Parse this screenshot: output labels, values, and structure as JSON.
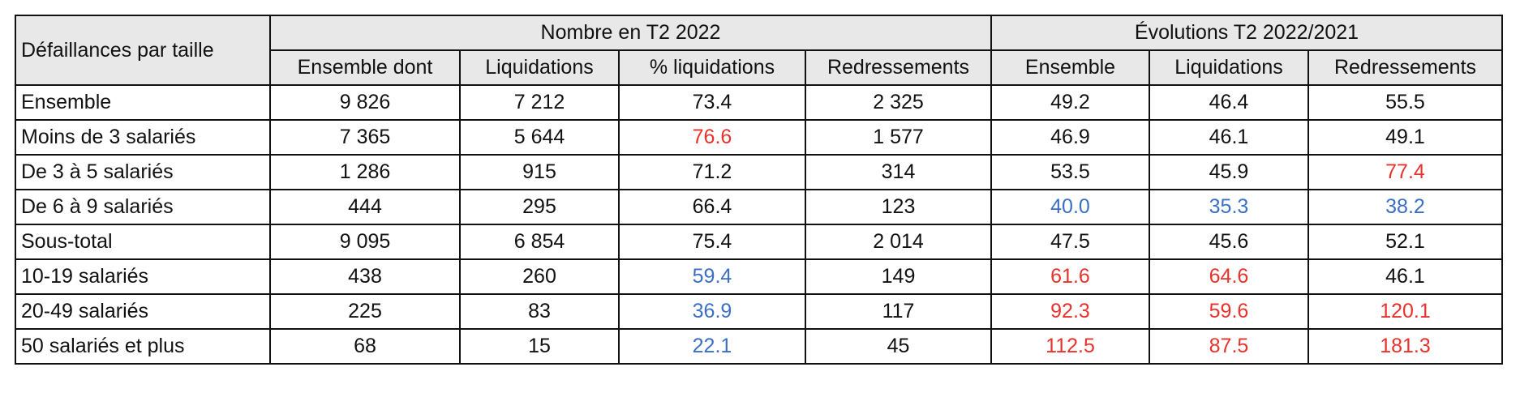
{
  "table": {
    "corner": "Défaillances par taille",
    "groups": [
      "Nombre en T2 2022",
      "Évolutions T2 2022/2021"
    ],
    "columns": [
      "Ensemble dont",
      "Liquidations",
      "% liquidations",
      "Redressements",
      "Ensemble",
      "Liquidations",
      "Redressements"
    ],
    "rows": [
      {
        "label": "Ensemble",
        "cells": [
          "9 826",
          "7 212",
          "73.4",
          "2 325",
          "49.2",
          "46.4",
          "55.5"
        ]
      },
      {
        "label": "Moins de 3 salariés",
        "cells": [
          "7 365",
          "5 644",
          {
            "text": "76.6",
            "color": "#e8322b"
          },
          "1 577",
          "46.9",
          "46.1",
          "49.1"
        ]
      },
      {
        "label": "De 3 à 5 salariés",
        "cells": [
          "1 286",
          "915",
          "71.2",
          "314",
          "53.5",
          "45.9",
          {
            "text": "77.4",
            "color": "#e8322b"
          }
        ]
      },
      {
        "label": "De 6 à 9 salariés",
        "cells": [
          "444",
          "295",
          "66.4",
          "123",
          {
            "text": "40.0",
            "color": "#3a6fc4"
          },
          {
            "text": "35.3",
            "color": "#3a6fc4"
          },
          {
            "text": "38.2",
            "color": "#3a6fc4"
          }
        ]
      },
      {
        "label": "Sous-total",
        "cells": [
          "9 095",
          "6 854",
          "75.4",
          "2 014",
          "47.5",
          "45.6",
          "52.1"
        ]
      },
      {
        "label": "10-19 salariés",
        "cells": [
          "438",
          "260",
          {
            "text": "59.4",
            "color": "#3a6fc4"
          },
          "149",
          {
            "text": "61.6",
            "color": "#e8322b"
          },
          {
            "text": "64.6",
            "color": "#e8322b"
          },
          "46.1"
        ]
      },
      {
        "label": "20-49 salariés",
        "cells": [
          "225",
          "83",
          {
            "text": "36.9",
            "color": "#3a6fc4"
          },
          "117",
          {
            "text": "92.3",
            "color": "#e8322b"
          },
          {
            "text": "59.6",
            "color": "#e8322b"
          },
          {
            "text": "120.1",
            "color": "#e8322b"
          }
        ]
      },
      {
        "label": "50 salariés et plus",
        "cells": [
          "68",
          "15",
          {
            "text": "22.1",
            "color": "#3a6fc4"
          },
          "45",
          {
            "text": "112.5",
            "color": "#e8322b"
          },
          {
            "text": "87.5",
            "color": "#e8322b"
          },
          {
            "text": "181.3",
            "color": "#e8322b"
          }
        ]
      }
    ]
  }
}
